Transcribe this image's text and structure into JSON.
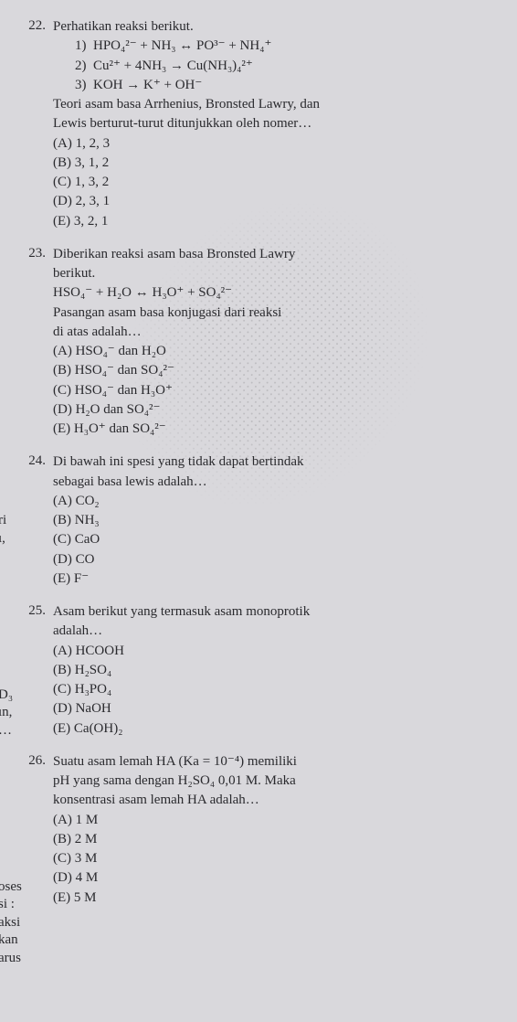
{
  "top_crop": "—",
  "left_fragments": {
    "a": "ri",
    "b": "ı,",
    "c": "D₃",
    "d": "ın,",
    "e": "…",
    "f": "oses",
    "g": "si :",
    "h": "aksi",
    "i": "kan",
    "j": "arus"
  },
  "q22": {
    "num": "22.",
    "stem": "Perhatikan reaksi berikut.",
    "r1_label": "1)",
    "r1": "HPO₄²⁻ + NH₃ ↔ PO³⁻ + NH₄⁺",
    "r2_label": "2)",
    "r2": "Cu²⁺ + 4NH₃ → Cu(NH₃)₄²⁺",
    "r3_label": "3)",
    "r3": "KOH → K⁺ + OH⁻",
    "post1": "Teori asam basa Arrhenius, Bronsted Lawry, dan",
    "post2": "Lewis berturut-turut ditunjukkan oleh nomer…",
    "A": "(A) 1, 2, 3",
    "B": "(B) 3, 1, 2",
    "C": "(C) 1, 3, 2",
    "D": "(D) 2, 3, 1",
    "E": "(E) 3, 2, 1"
  },
  "q23": {
    "num": "23.",
    "stem1": "Diberikan reaksi asam basa Bronsted Lawry",
    "stem2": "berikut.",
    "eqn": "HSO₄⁻ + H₂O ↔ H₃O⁺ + SO₄²⁻",
    "post1": "Pasangan asam basa konjugasi dari reaksi",
    "post2": "di atas adalah…",
    "A": "(A) HSO₄⁻ dan H₂O",
    "B": "(B) HSO₄⁻ dan SO₄²⁻",
    "C": "(C) HSO₄⁻ dan H₃O⁺",
    "D": "(D) H₂O dan SO₄²⁻",
    "E": "(E) H₃O⁺ dan SO₄²⁻"
  },
  "q24": {
    "num": "24.",
    "stem1": "Di bawah ini spesi yang tidak dapat bertindak",
    "stem2": "sebagai basa lewis adalah…",
    "A": "(A) CO₂",
    "B": "(B) NH₃",
    "C": "(C) CaO",
    "D": "(D) CO",
    "E": "(E) F⁻"
  },
  "q25": {
    "num": "25.",
    "stem1": "Asam berikut yang termasuk asam monoprotik",
    "stem2": "adalah…",
    "A": "(A) HCOOH",
    "B": "(B) H₂SO₄",
    "C": "(C) H₃PO₄",
    "D": "(D) NaOH",
    "E": "(E) Ca(OH)₂"
  },
  "q26": {
    "num": "26.",
    "stem1": "Suatu asam lemah HA (Ka = 10⁻⁴) memiliki",
    "stem2": "pH yang sama dengan H₂SO₄ 0,01 M. Maka",
    "stem3": "konsentrasi asam lemah HA adalah…",
    "A": "(A) 1 M",
    "B": "(B) 2 M",
    "C": "(C) 3 M",
    "D": "(D) 4 M",
    "E": "(E) 5 M"
  }
}
